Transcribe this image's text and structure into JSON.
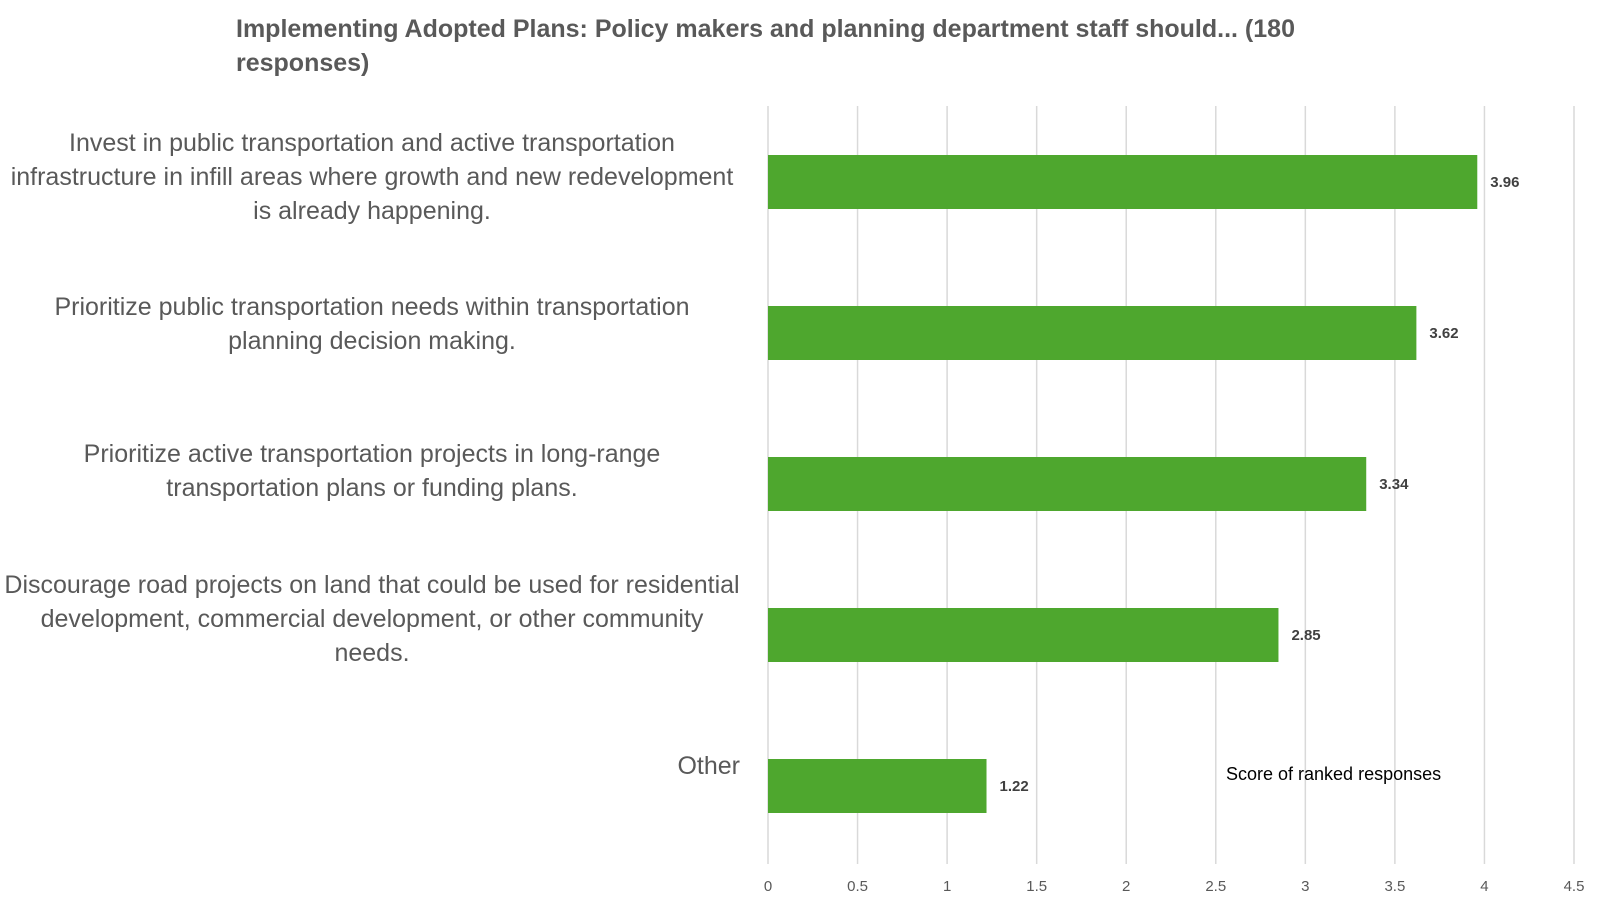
{
  "chart_data": {
    "type": "bar",
    "orientation": "horizontal",
    "title": "Implementing Adopted Plans: Policy makers and planning department staff should... (180 responses)",
    "categories": [
      "Invest in public transportation and active transportation infrastructure in infill areas where growth and new redevelopment is already happening.",
      "Prioritize public transportation needs within transportation planning decision making.",
      "Prioritize active transportation projects in long-range transportation plans or funding plans.",
      "Discourage road projects on land that could be used for residential development, commercial development, or other community needs.",
      "Other"
    ],
    "values": [
      3.96,
      3.62,
      3.34,
      2.85,
      1.22
    ],
    "value_labels": [
      "3.96",
      "3.62",
      "3.34",
      "2.85",
      "1.22"
    ],
    "series_name": "Score of ranked responses",
    "xlim": [
      0,
      4.5
    ],
    "xticks": [
      0,
      0.5,
      1,
      1.5,
      2,
      2.5,
      3,
      3.5,
      4,
      4.5
    ],
    "xtick_labels": [
      "0",
      "0.5",
      "1",
      "1.5",
      "2",
      "2.5",
      "3",
      "3.5",
      "4",
      "4.5"
    ],
    "grid": true,
    "bar_color": "#4ea72e",
    "grid_color": "#d9d9d9"
  }
}
